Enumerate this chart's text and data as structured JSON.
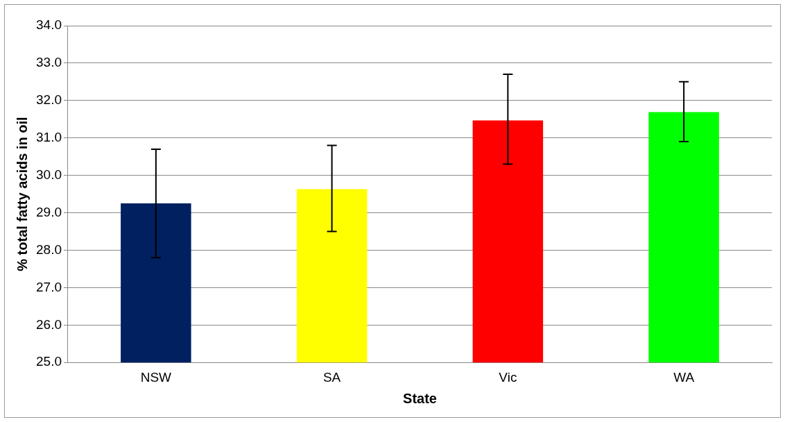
{
  "chart_data": {
    "type": "bar",
    "xlabel": "State",
    "ylabel": "% total fatty acids in oil",
    "categories": [
      "NSW",
      "SA",
      "Vic",
      "WA"
    ],
    "values": [
      29.25,
      29.63,
      31.47,
      31.69
    ],
    "colors": [
      "#002060",
      "#ffff00",
      "#ff0000",
      "#00ff00"
    ],
    "errors": [
      [
        27.8,
        30.7
      ],
      [
        28.5,
        30.8
      ],
      [
        30.3,
        32.7
      ],
      [
        30.9,
        32.5
      ]
    ],
    "ylim": [
      25,
      34
    ],
    "yticks": [
      {
        "value": 25,
        "label": "25.0"
      },
      {
        "value": 26,
        "label": "26.0"
      },
      {
        "value": 27,
        "label": "27.0"
      },
      {
        "value": 28,
        "label": "28.0"
      },
      {
        "value": 29,
        "label": "29.0"
      },
      {
        "value": 30,
        "label": "30.0"
      },
      {
        "value": 31,
        "label": "31.0"
      },
      {
        "value": 32,
        "label": "32.0"
      },
      {
        "value": 33,
        "label": "33.0"
      },
      {
        "value": 34,
        "label": "34.0"
      }
    ],
    "grid": "y",
    "legend": false
  }
}
